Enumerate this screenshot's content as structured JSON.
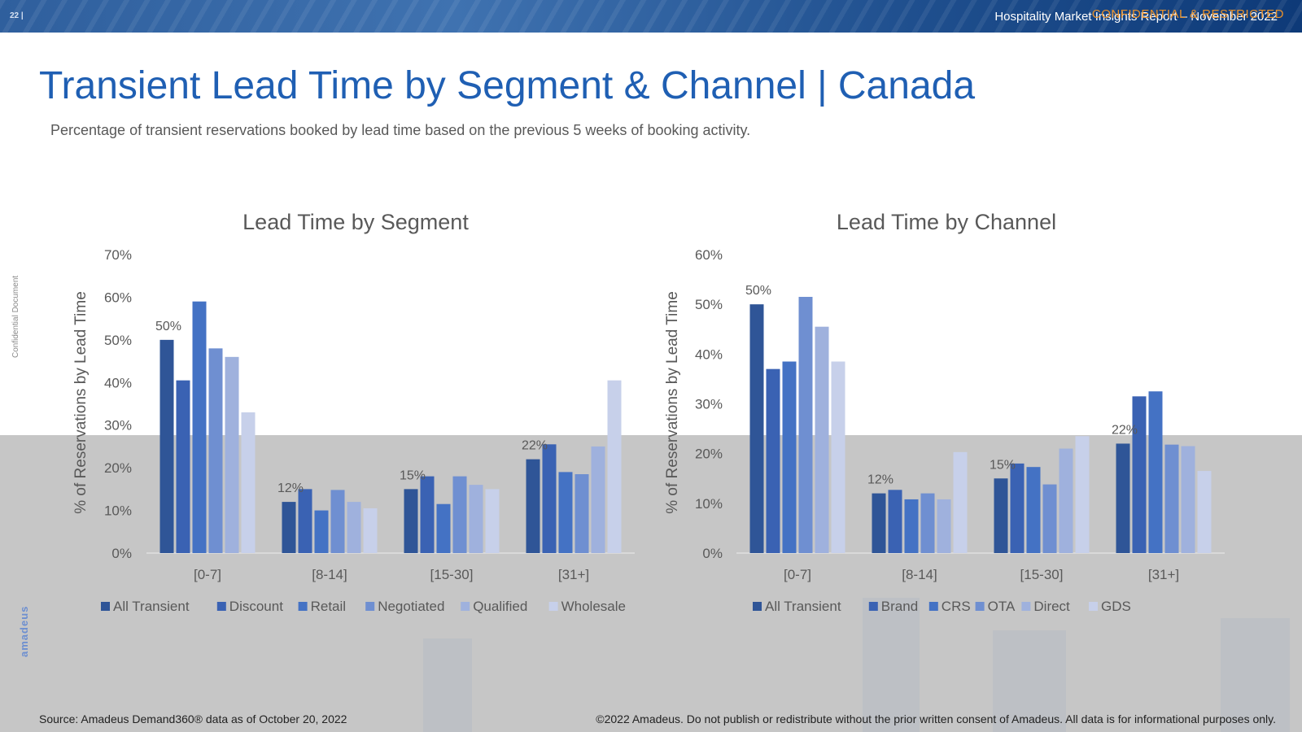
{
  "header": {
    "page_number": "22 |",
    "report_title": "Hospitality Market Insights Report – November 2022",
    "confidential_label": "CONFIDENTIAL & RESTRICTED"
  },
  "title": "Transient Lead Time by Segment & Channel | Canada",
  "subtitle": "Percentage of transient reservations booked by lead time based on the previous 5 weeks of booking activity.",
  "side_label": "Confidential Document",
  "logo_text": "amadeus",
  "footer": {
    "source": "Source: Amadeus Demand360® data as of October 20, 2022",
    "copyright": "©2022 Amadeus. Do not publish or redistribute without the prior written consent of Amadeus. All data is for informational purposes only."
  },
  "colors": [
    "#2f5597",
    "#3a62b3",
    "#4472c4",
    "#6f8fd1",
    "#9fb1dd",
    "#c7d0ea"
  ],
  "chart_data": [
    {
      "type": "bar",
      "title": "Lead Time by Segment",
      "ylabel": "% of Reservations by Lead Time",
      "xlabel": "",
      "categories": [
        "[0-7]",
        "[8-14]",
        "[15-30]",
        "[31+]"
      ],
      "ylim": [
        0,
        70
      ],
      "yticks": [
        0,
        10,
        20,
        30,
        40,
        50,
        60,
        70
      ],
      "tick_labels": [
        "0%",
        "10%",
        "20%",
        "30%",
        "40%",
        "50%",
        "60%",
        "70%"
      ],
      "series": [
        {
          "name": "All Transient",
          "values": [
            50,
            12,
            15,
            22
          ]
        },
        {
          "name": "Discount",
          "values": [
            40.5,
            15,
            18,
            25.5
          ]
        },
        {
          "name": "Retail",
          "values": [
            59,
            10,
            11.5,
            19
          ]
        },
        {
          "name": "Negotiated",
          "values": [
            48,
            14.8,
            18,
            18.5
          ]
        },
        {
          "name": "Qualified",
          "values": [
            46,
            12,
            16,
            25
          ]
        },
        {
          "name": "Wholesale",
          "values": [
            33,
            10.5,
            15,
            40.5
          ]
        }
      ],
      "data_labels": [
        "50%",
        "12%",
        "15%",
        "22%"
      ],
      "legend": "bottom"
    },
    {
      "type": "bar",
      "title": "Lead Time by Channel",
      "ylabel": "% of Reservations by Lead Time",
      "xlabel": "",
      "categories": [
        "[0-7]",
        "[8-14]",
        "[15-30]",
        "[31+]"
      ],
      "ylim": [
        0,
        60
      ],
      "yticks": [
        0,
        10,
        20,
        30,
        40,
        50,
        60
      ],
      "tick_labels": [
        "0%",
        "10%",
        "20%",
        "30%",
        "40%",
        "50%",
        "60%"
      ],
      "series": [
        {
          "name": "All Transient",
          "values": [
            50,
            12,
            15,
            22
          ]
        },
        {
          "name": "Brand",
          "values": [
            37,
            12.7,
            18,
            31.5
          ]
        },
        {
          "name": "CRS",
          "values": [
            38.5,
            10.8,
            17.3,
            32.5
          ]
        },
        {
          "name": "OTA",
          "values": [
            51.5,
            12,
            13.8,
            21.8
          ]
        },
        {
          "name": "Direct",
          "values": [
            45.5,
            10.8,
            21,
            21.5
          ]
        },
        {
          "name": "GDS",
          "values": [
            38.5,
            20.3,
            23.5,
            16.5
          ]
        }
      ],
      "data_labels": [
        "50%",
        "12%",
        "15%",
        "22%"
      ],
      "legend": "bottom"
    }
  ]
}
